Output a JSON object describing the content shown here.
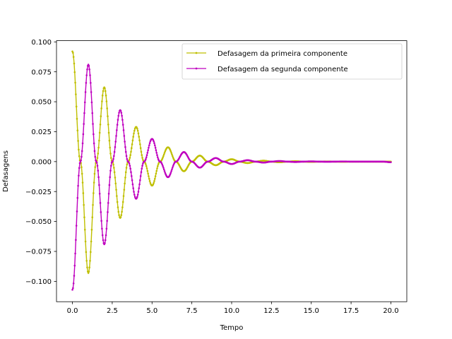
{
  "chart_data": {
    "type": "line",
    "xlabel": "Tempo",
    "ylabel": "Defasagens",
    "xlim": [
      -1.0,
      21.0
    ],
    "ylim": [
      -0.117,
      0.101
    ],
    "xticks": [
      0.0,
      2.5,
      5.0,
      7.5,
      10.0,
      12.5,
      15.0,
      17.5,
      20.0
    ],
    "xtick_labels": [
      "0.0",
      "2.5",
      "5.0",
      "7.5",
      "10.0",
      "12.5",
      "15.0",
      "17.5",
      "20.0"
    ],
    "yticks": [
      -0.1,
      -0.075,
      -0.05,
      -0.025,
      0.0,
      0.025,
      0.05,
      0.075,
      0.1
    ],
    "ytick_labels": [
      "−0.100",
      "−0.075",
      "−0.050",
      "−0.025",
      "0.000",
      "0.025",
      "0.050",
      "0.075",
      "0.100"
    ],
    "grid": false,
    "legend_position": "top-right",
    "series": [
      {
        "name": "Defasagem da primeira componente",
        "color": "#bfbf00",
        "marker": "dot",
        "x": [
          0.0,
          0.5,
          1.0,
          1.5,
          2.0,
          2.5,
          3.0,
          3.5,
          4.0,
          4.5,
          5.0,
          5.5,
          6.0,
          6.5,
          7.0,
          7.5,
          8.0,
          8.5,
          9.0,
          9.5,
          10.0,
          10.5,
          11.0,
          11.5,
          12.0,
          12.5,
          13.0,
          13.5,
          14.0,
          14.5,
          15.0,
          15.5,
          16.0,
          16.5,
          17.0,
          17.5,
          18.0,
          18.5,
          19.0,
          19.5,
          20.0
        ],
        "y": [
          0.092,
          0.0,
          -0.093,
          0.0,
          0.062,
          0.0,
          -0.047,
          0.0,
          0.029,
          0.0,
          -0.02,
          0.0,
          0.012,
          0.0,
          -0.008,
          0.0,
          0.005,
          0.0,
          -0.003,
          0.0,
          0.002,
          0.0,
          -0.0012,
          0.0,
          0.0008,
          0.0,
          -0.0005,
          0.0,
          0.0003,
          0.0,
          -0.0002,
          0.0,
          0.0001,
          0.0,
          -0.0001,
          0.0,
          0.0,
          0.0,
          0.0,
          0.0,
          0.0
        ]
      },
      {
        "name": "Defasagem da segunda componente",
        "color": "#bf00bf",
        "marker": "dot",
        "x": [
          0.0,
          0.5,
          1.0,
          1.5,
          2.0,
          2.5,
          3.0,
          3.5,
          4.0,
          4.5,
          5.0,
          5.5,
          6.0,
          6.5,
          7.0,
          7.5,
          8.0,
          8.5,
          9.0,
          9.5,
          10.0,
          10.5,
          11.0,
          11.5,
          12.0,
          12.5,
          13.0,
          13.5,
          14.0,
          14.5,
          15.0,
          15.5,
          16.0,
          16.5,
          17.0,
          17.5,
          18.0,
          18.5,
          19.0,
          19.5,
          20.0
        ],
        "y": [
          -0.107,
          0.0,
          0.081,
          0.0,
          -0.069,
          0.0,
          0.043,
          0.0,
          -0.031,
          0.0,
          0.019,
          0.0,
          -0.013,
          0.0,
          0.008,
          0.0,
          -0.005,
          0.0,
          0.003,
          0.0,
          -0.002,
          0.0,
          0.0012,
          0.0,
          -0.0008,
          0.0,
          0.0005,
          0.0,
          -0.0003,
          0.0,
          0.0002,
          0.0,
          -0.0001,
          0.0,
          0.0001,
          0.0,
          0.0,
          0.0,
          0.0,
          0.0,
          -0.0005
        ]
      }
    ]
  }
}
